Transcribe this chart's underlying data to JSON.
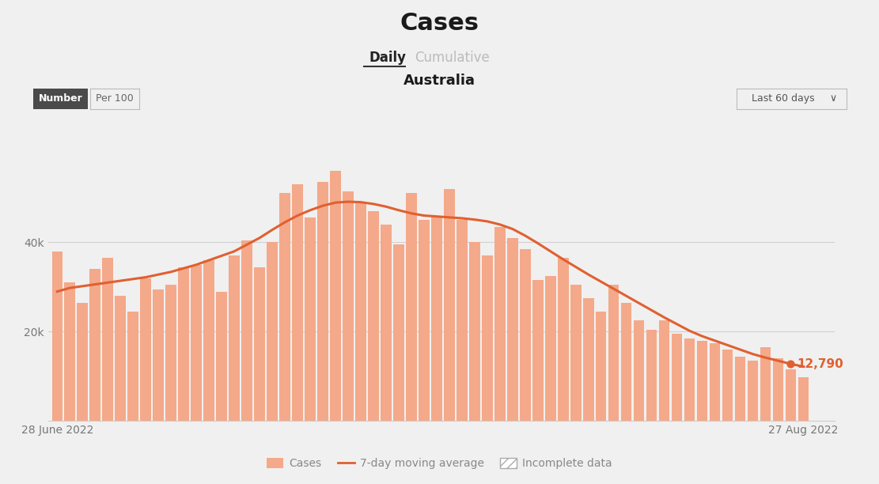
{
  "title": "Cases",
  "subtitle_daily": "Daily",
  "subtitle_cumulative": "Cumulative",
  "region": "Australia",
  "btn_number": "Number",
  "btn_per100": "Per 100",
  "btn_days": "Last 60 days ∨",
  "x_start_label": "28 June 2022",
  "x_end_label": "27 Aug 2022",
  "bar_color": "#f4a98a",
  "line_color": "#e06030",
  "background_color": "#f0f0f0",
  "annotation_value": "12,790",
  "annotation_color": "#e06030",
  "daily_cases": [
    38000,
    31000,
    26500,
    34000,
    36500,
    28000,
    24500,
    32000,
    29500,
    30500,
    34500,
    35000,
    36000,
    29000,
    37000,
    40500,
    34500,
    40000,
    51000,
    53000,
    45500,
    53500,
    56000,
    51500,
    49000,
    47000,
    44000,
    39500,
    51000,
    45000,
    46000,
    52000,
    45000,
    40000,
    37000,
    43500,
    41000,
    38500,
    31500,
    32500,
    36500,
    30500,
    27500,
    24500,
    30500,
    26500,
    22500,
    20500,
    22500,
    19500,
    18500,
    18000,
    17500,
    16000,
    14500,
    13500,
    16500,
    14000,
    11500,
    9800
  ],
  "moving_avg": [
    29000,
    29800,
    30200,
    30600,
    31000,
    31400,
    31800,
    32200,
    32800,
    33400,
    34200,
    35000,
    36000,
    37000,
    38000,
    39500,
    41000,
    42800,
    44500,
    46000,
    47200,
    48200,
    48900,
    49100,
    49000,
    48600,
    48000,
    47200,
    46500,
    46000,
    45800,
    45600,
    45400,
    45100,
    44700,
    44000,
    43000,
    41500,
    39800,
    38000,
    36200,
    34500,
    32800,
    31200,
    29600,
    28000,
    26400,
    24800,
    23200,
    21700,
    20200,
    19000,
    18000,
    17000,
    16000,
    15000,
    14200,
    13500,
    12790,
    12200
  ]
}
